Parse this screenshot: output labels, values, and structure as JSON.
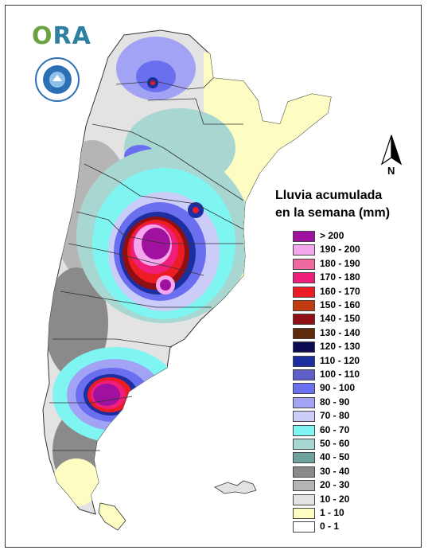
{
  "logo": {
    "text_a": "O",
    "text_b": "RA"
  },
  "north": {
    "label": "N"
  },
  "legend": {
    "title_line1": "Lluvia acumulada",
    "title_line2": "en la semana (mm)",
    "items": [
      {
        "label": "> 200",
        "color": "#a0119f"
      },
      {
        "label": "190 - 200",
        "color": "#f6a6ec"
      },
      {
        "label": "180 - 190",
        "color": "#f06aa0"
      },
      {
        "label": "170 - 180",
        "color": "#ef1e7a"
      },
      {
        "label": "160 - 170",
        "color": "#ec1c24"
      },
      {
        "label": "150 - 160",
        "color": "#c33c10"
      },
      {
        "label": "140 - 150",
        "color": "#8f0f12"
      },
      {
        "label": "130 - 140",
        "color": "#5e2b0c"
      },
      {
        "label": "120 - 130",
        "color": "#0d0b52"
      },
      {
        "label": "110 - 120",
        "color": "#1d2fa0"
      },
      {
        "label": "100 - 110",
        "color": "#5e5fc8"
      },
      {
        "label": "90 - 100",
        "color": "#6a6ff0"
      },
      {
        "label": "80 - 90",
        "color": "#a3a3f5"
      },
      {
        "label": "70 - 80",
        "color": "#ccccf8"
      },
      {
        "label": "60 - 70",
        "color": "#7ff5f2"
      },
      {
        "label": "50 - 60",
        "color": "#a8d6d0"
      },
      {
        "label": "40 - 50",
        "color": "#6fa39d"
      },
      {
        "label": "30 - 40",
        "color": "#8a8a8a"
      },
      {
        "label": "20 - 30",
        "color": "#b5b5b5"
      },
      {
        "label": "10 - 20",
        "color": "#e3e3e3"
      },
      {
        "label": "1 - 10",
        "color": "#fdfcc2"
      },
      {
        "label": "0 - 1",
        "color": "#ffffff"
      }
    ]
  }
}
